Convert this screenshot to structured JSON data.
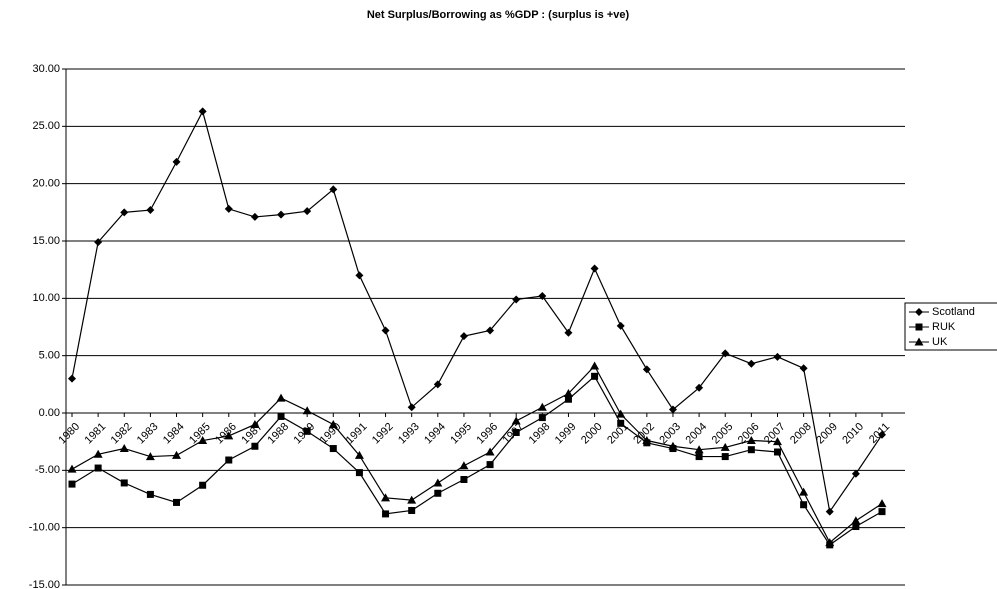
{
  "chart_data": {
    "type": "line",
    "title": "Net Surplus/Borrowing as %GDP : (surplus is  +ve)",
    "categories": [
      "1980",
      "1981",
      "1982",
      "1983",
      "1984",
      "1985",
      "1986",
      "1987",
      "1988",
      "1989",
      "1990",
      "1991",
      "1992",
      "1993",
      "1994",
      "1995",
      "1996",
      "1997",
      "1998",
      "1999",
      "2000",
      "2001",
      "2002",
      "2003",
      "2004",
      "2005",
      "2006",
      "2007",
      "2008",
      "2009",
      "2010",
      "2011"
    ],
    "series": [
      {
        "name": "Scotland",
        "color": "#000000",
        "marker": "diamond",
        "values": [
          3.0,
          14.9,
          17.5,
          17.7,
          21.9,
          26.3,
          17.8,
          17.1,
          17.3,
          17.6,
          19.5,
          12.0,
          7.2,
          0.5,
          2.5,
          6.7,
          7.2,
          9.9,
          10.2,
          7.0,
          12.6,
          7.6,
          3.8,
          0.3,
          2.2,
          5.2,
          4.3,
          4.9,
          3.9,
          -8.6,
          -5.3,
          -1.9
        ]
      },
      {
        "name": "RUK",
        "color": "#000000",
        "marker": "square",
        "values": [
          -6.2,
          -4.8,
          -6.1,
          -7.1,
          -7.8,
          -6.3,
          -4.1,
          -2.9,
          -0.3,
          -1.6,
          -3.1,
          -5.2,
          -8.8,
          -8.5,
          -7.0,
          -5.8,
          -4.5,
          -1.7,
          -0.4,
          1.2,
          3.2,
          -0.9,
          -2.6,
          -3.1,
          -3.8,
          -3.8,
          -3.2,
          -3.4,
          -8.0,
          -11.5,
          -9.9,
          -8.6
        ]
      },
      {
        "name": "UK",
        "color": "#000000",
        "marker": "triangle",
        "values": [
          -4.9,
          -3.6,
          -3.1,
          -3.8,
          -3.7,
          -2.4,
          -2.0,
          -1.0,
          1.3,
          0.2,
          -1.0,
          -3.7,
          -7.4,
          -7.6,
          -6.1,
          -4.6,
          -3.4,
          -0.7,
          0.5,
          1.7,
          4.1,
          -0.1,
          -2.4,
          -2.9,
          -3.2,
          -3.0,
          -2.4,
          -2.5,
          -6.9,
          -11.3,
          -9.4,
          -7.9
        ]
      }
    ],
    "ylim": [
      -15,
      30
    ],
    "yticks": [
      {
        "value": -15,
        "label": "-15.00"
      },
      {
        "value": -10,
        "label": "-10.00"
      },
      {
        "value": -5,
        "label": "-5.00"
      },
      {
        "value": 0,
        "label": "0.00"
      },
      {
        "value": 5,
        "label": "5.00"
      },
      {
        "value": 10,
        "label": "10.00"
      },
      {
        "value": 15,
        "label": "15.00"
      },
      {
        "value": 20,
        "label": "20.00"
      },
      {
        "value": 25,
        "label": "25.00"
      },
      {
        "value": 30,
        "label": "30.00"
      }
    ],
    "grid": true,
    "legend": "right"
  }
}
